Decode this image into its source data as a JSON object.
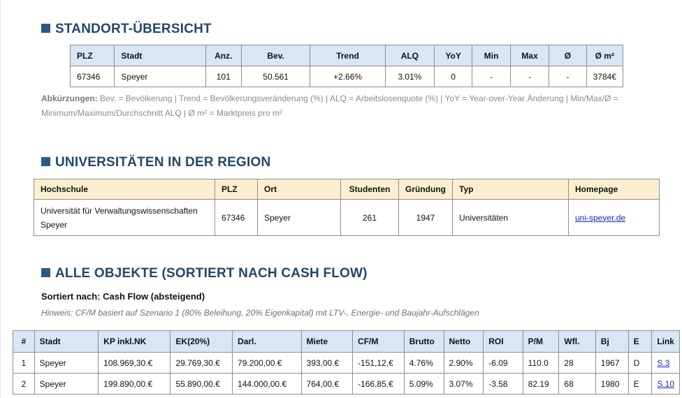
{
  "standort": {
    "title": "STANDORT-ÜBERSICHT",
    "columns": [
      "PLZ",
      "Stadt",
      "Anz.",
      "Bev.",
      "Trend",
      "ALQ",
      "YoY",
      "Min",
      "Max",
      "Ø",
      "Ø m²"
    ],
    "row": [
      "67346",
      "Speyer",
      "101",
      "50.561",
      "+2.66%",
      "3.01%",
      "0",
      "-",
      "-",
      "-",
      "3784€"
    ],
    "abbr_label": "Abkürzungen:",
    "abbr_text": " Bev. = Bevölkerung | Trend = Bevölkerungsveränderung (%) | ALQ = Arbeitslosenquote (%) | YoY = Year-over-Year Änderung | Min/Max/Ø = Minimum/Maximum/Durchschnitt ALQ | Ø m² = Marktpreis pro m²"
  },
  "universities": {
    "title": "UNIVERSITÄTEN IN DER REGION",
    "columns": [
      "Hochschule",
      "PLZ",
      "Ort",
      "Studenten",
      "Gründung",
      "Typ",
      "Homepage"
    ],
    "row": [
      "Universität für Verwaltungswissenschaften Speyer",
      "67346",
      "Speyer",
      "261",
      "1947",
      "Universitäten",
      "uni-speyer.de"
    ]
  },
  "objects": {
    "title": "ALLE OBJEKTE (SORTIERT NACH CASH FLOW)",
    "sorted_by": "Sortiert nach: Cash Flow (absteigend)",
    "hint": "Hinweis: CF/M basiert auf Szenario 1 (80% Beleihung, 20% Eigenkapital) mit LTV-, Energie- und Baujahr-Aufschlägen",
    "columns": [
      "#",
      "Stadt",
      "KP inkl.NK",
      "EK(20%)",
      "Darl.",
      "Miete",
      "CF/M",
      "Brutto",
      "Netto",
      "ROI",
      "P/M",
      "Wfl.",
      "Bj",
      "E",
      "Link"
    ],
    "rows": [
      [
        "1",
        "Speyer",
        "108.969,30.€",
        "29.769,30.€",
        "79.200,00.€",
        "393,00.€",
        "-151,12.€",
        "4.76%",
        "2.90%",
        "-6.09",
        "110.0",
        "28",
        "1967",
        "D",
        "S.3"
      ],
      [
        "2",
        "Speyer",
        "199.890,00.€",
        "55.890,00.€",
        "144.000,00.€",
        "764,00.€",
        "-166,85.€",
        "5.09%",
        "3.07%",
        "-3.58",
        "82.19",
        "68",
        "1980",
        "E",
        "S.10"
      ]
    ]
  }
}
